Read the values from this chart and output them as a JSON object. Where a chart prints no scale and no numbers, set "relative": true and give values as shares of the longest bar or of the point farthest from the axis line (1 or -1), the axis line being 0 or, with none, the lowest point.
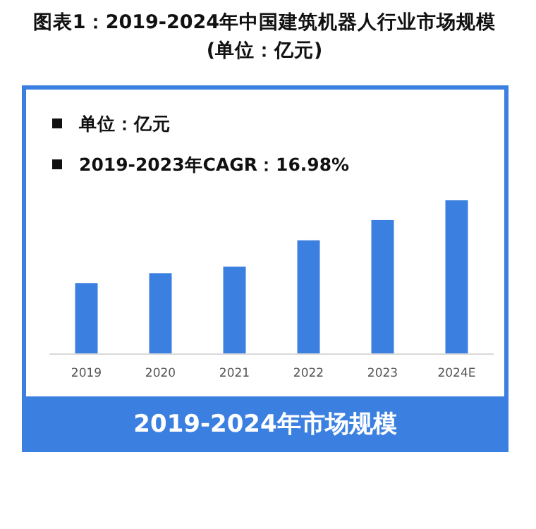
{
  "chart_data": {
    "type": "bar",
    "title": "图表1：2019-2024年中国建筑机器人行业市场规模(单位：亿元)",
    "xlabel": "2019-2024年市场规模",
    "annotations": [
      "单位：亿元",
      "2019-2023年CAGR：16.98%"
    ],
    "categories": [
      "2019",
      "2020",
      "2021",
      "2022",
      "2023",
      "2024E"
    ],
    "values": [
      0.462,
      0.526,
      0.569,
      0.74,
      0.872,
      1
    ],
    "color": "#3b80e0",
    "relative": true
  }
}
